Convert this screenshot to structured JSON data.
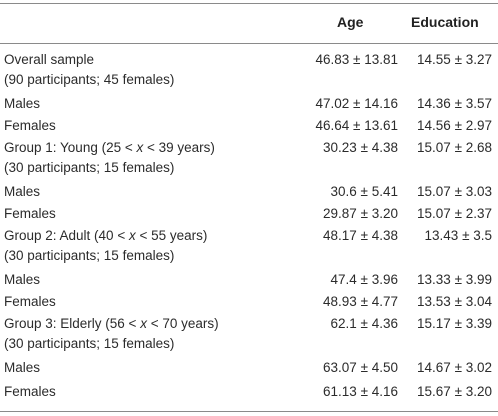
{
  "header": {
    "age": "Age",
    "education": "Education"
  },
  "rows": [
    {
      "label": "Overall sample",
      "sub": "(90 participants; 45 females)",
      "age": "46.83 ± 13.81",
      "education": "14.55 ± 3.27"
    },
    {
      "label": "Males",
      "age": "47.02 ± 14.16",
      "education": "14.36 ± 3.57"
    },
    {
      "label": "Females",
      "age": "46.64 ± 13.61",
      "education": "14.56 ± 2.97"
    },
    {
      "label_prefix": "Group 1: Young (25 < ",
      "label_var": "x",
      "label_suffix": " < 39 years)",
      "sub": "(30 participants; 15 females)",
      "age": "30.23 ± 4.38",
      "education": "15.07 ± 2.68"
    },
    {
      "label": "Males",
      "age": "30.6 ± 5.41",
      "education": "15.07 ± 3.03"
    },
    {
      "label": "Females",
      "age": "29.87 ± 3.20",
      "education": "15.07 ± 2.37"
    },
    {
      "label_prefix": "Group 2: Adult (40 < ",
      "label_var": "x",
      "label_suffix": " < 55 years)",
      "sub": "(30 participants; 15 females)",
      "age": "48.17 ± 4.38",
      "education": "13.43 ± 3.5"
    },
    {
      "label": "Males",
      "age": "47.4 ± 3.96",
      "education": "13.33 ± 3.99"
    },
    {
      "label": "Females",
      "age": "48.93 ± 4.77",
      "education": "13.53 ± 3.04"
    },
    {
      "label_prefix": "Group 3: Elderly (56 < ",
      "label_var": "x",
      "label_suffix": " < 70 years)",
      "sub": "(30 participants; 15 females)",
      "age": "62.1 ± 4.36",
      "education": "15.17 ± 3.39"
    },
    {
      "label": "Males",
      "age": "63.07 ± 4.50",
      "education": "14.67 ± 3.02"
    },
    {
      "label": "Females",
      "age": "61.13 ± 4.16",
      "education": "15.67 ± 3.20"
    }
  ]
}
